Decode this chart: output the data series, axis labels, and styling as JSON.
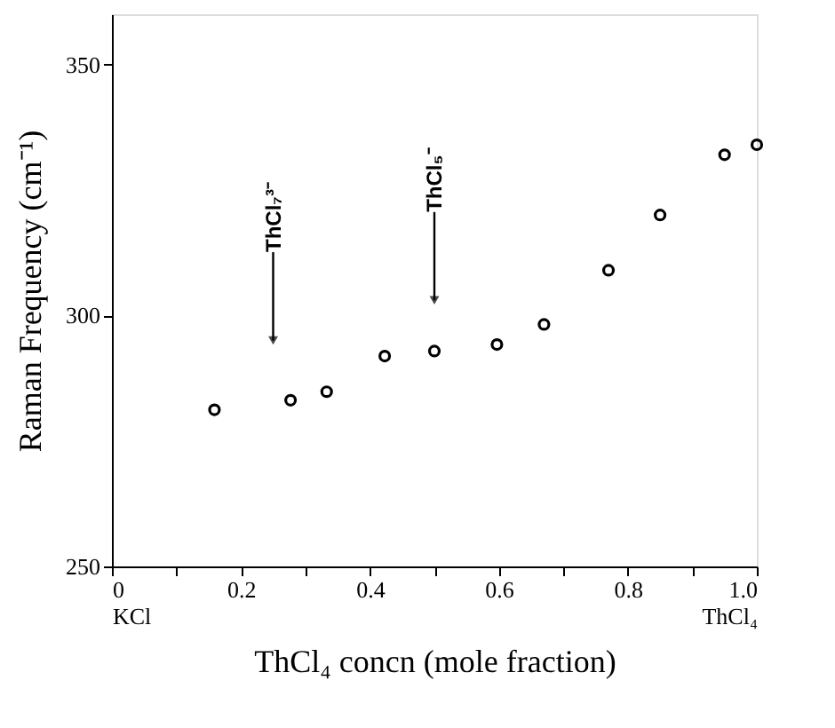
{
  "chart_data": {
    "type": "scatter",
    "xlabel": "ThCl₄ concn (mole fraction)",
    "ylabel": "Raman Frequency (cm⁻¹)",
    "x": [
      0.159,
      0.277,
      0.333,
      0.423,
      0.5,
      0.597,
      0.67,
      0.77,
      0.85,
      0.95,
      1.0
    ],
    "series": [
      {
        "color": "#000000",
        "values": [
          281.2,
          283.1,
          284.8,
          291.9,
          292.9,
          294.2,
          298.2,
          309,
          320,
          332,
          334
        ]
      }
    ],
    "marker": "circle",
    "grid": false,
    "legend": false,
    "xlim": [
      0,
      1.0
    ],
    "ylim": [
      250,
      360
    ],
    "xticks": [
      {
        "value": 0,
        "label": "0\nKCl"
      },
      {
        "value": 0.1,
        "label": null
      },
      0.2,
      {
        "value": 0.3,
        "label": null
      },
      0.4,
      {
        "value": 0.5,
        "label": null
      },
      0.6,
      {
        "value": 0.7,
        "label": null
      },
      0.8,
      {
        "value": 0.9,
        "label": null
      },
      {
        "value": 1.0,
        "label": "1.0\nThCl₄"
      }
    ],
    "yticks": [
      250,
      300,
      350
    ],
    "annotations": [
      {
        "text": "ThCl₇³⁻",
        "x": 0.25,
        "y": 295
      },
      {
        "text": "ThCl₅⁻",
        "x": 0.5,
        "y": 303
      }
    ]
  }
}
